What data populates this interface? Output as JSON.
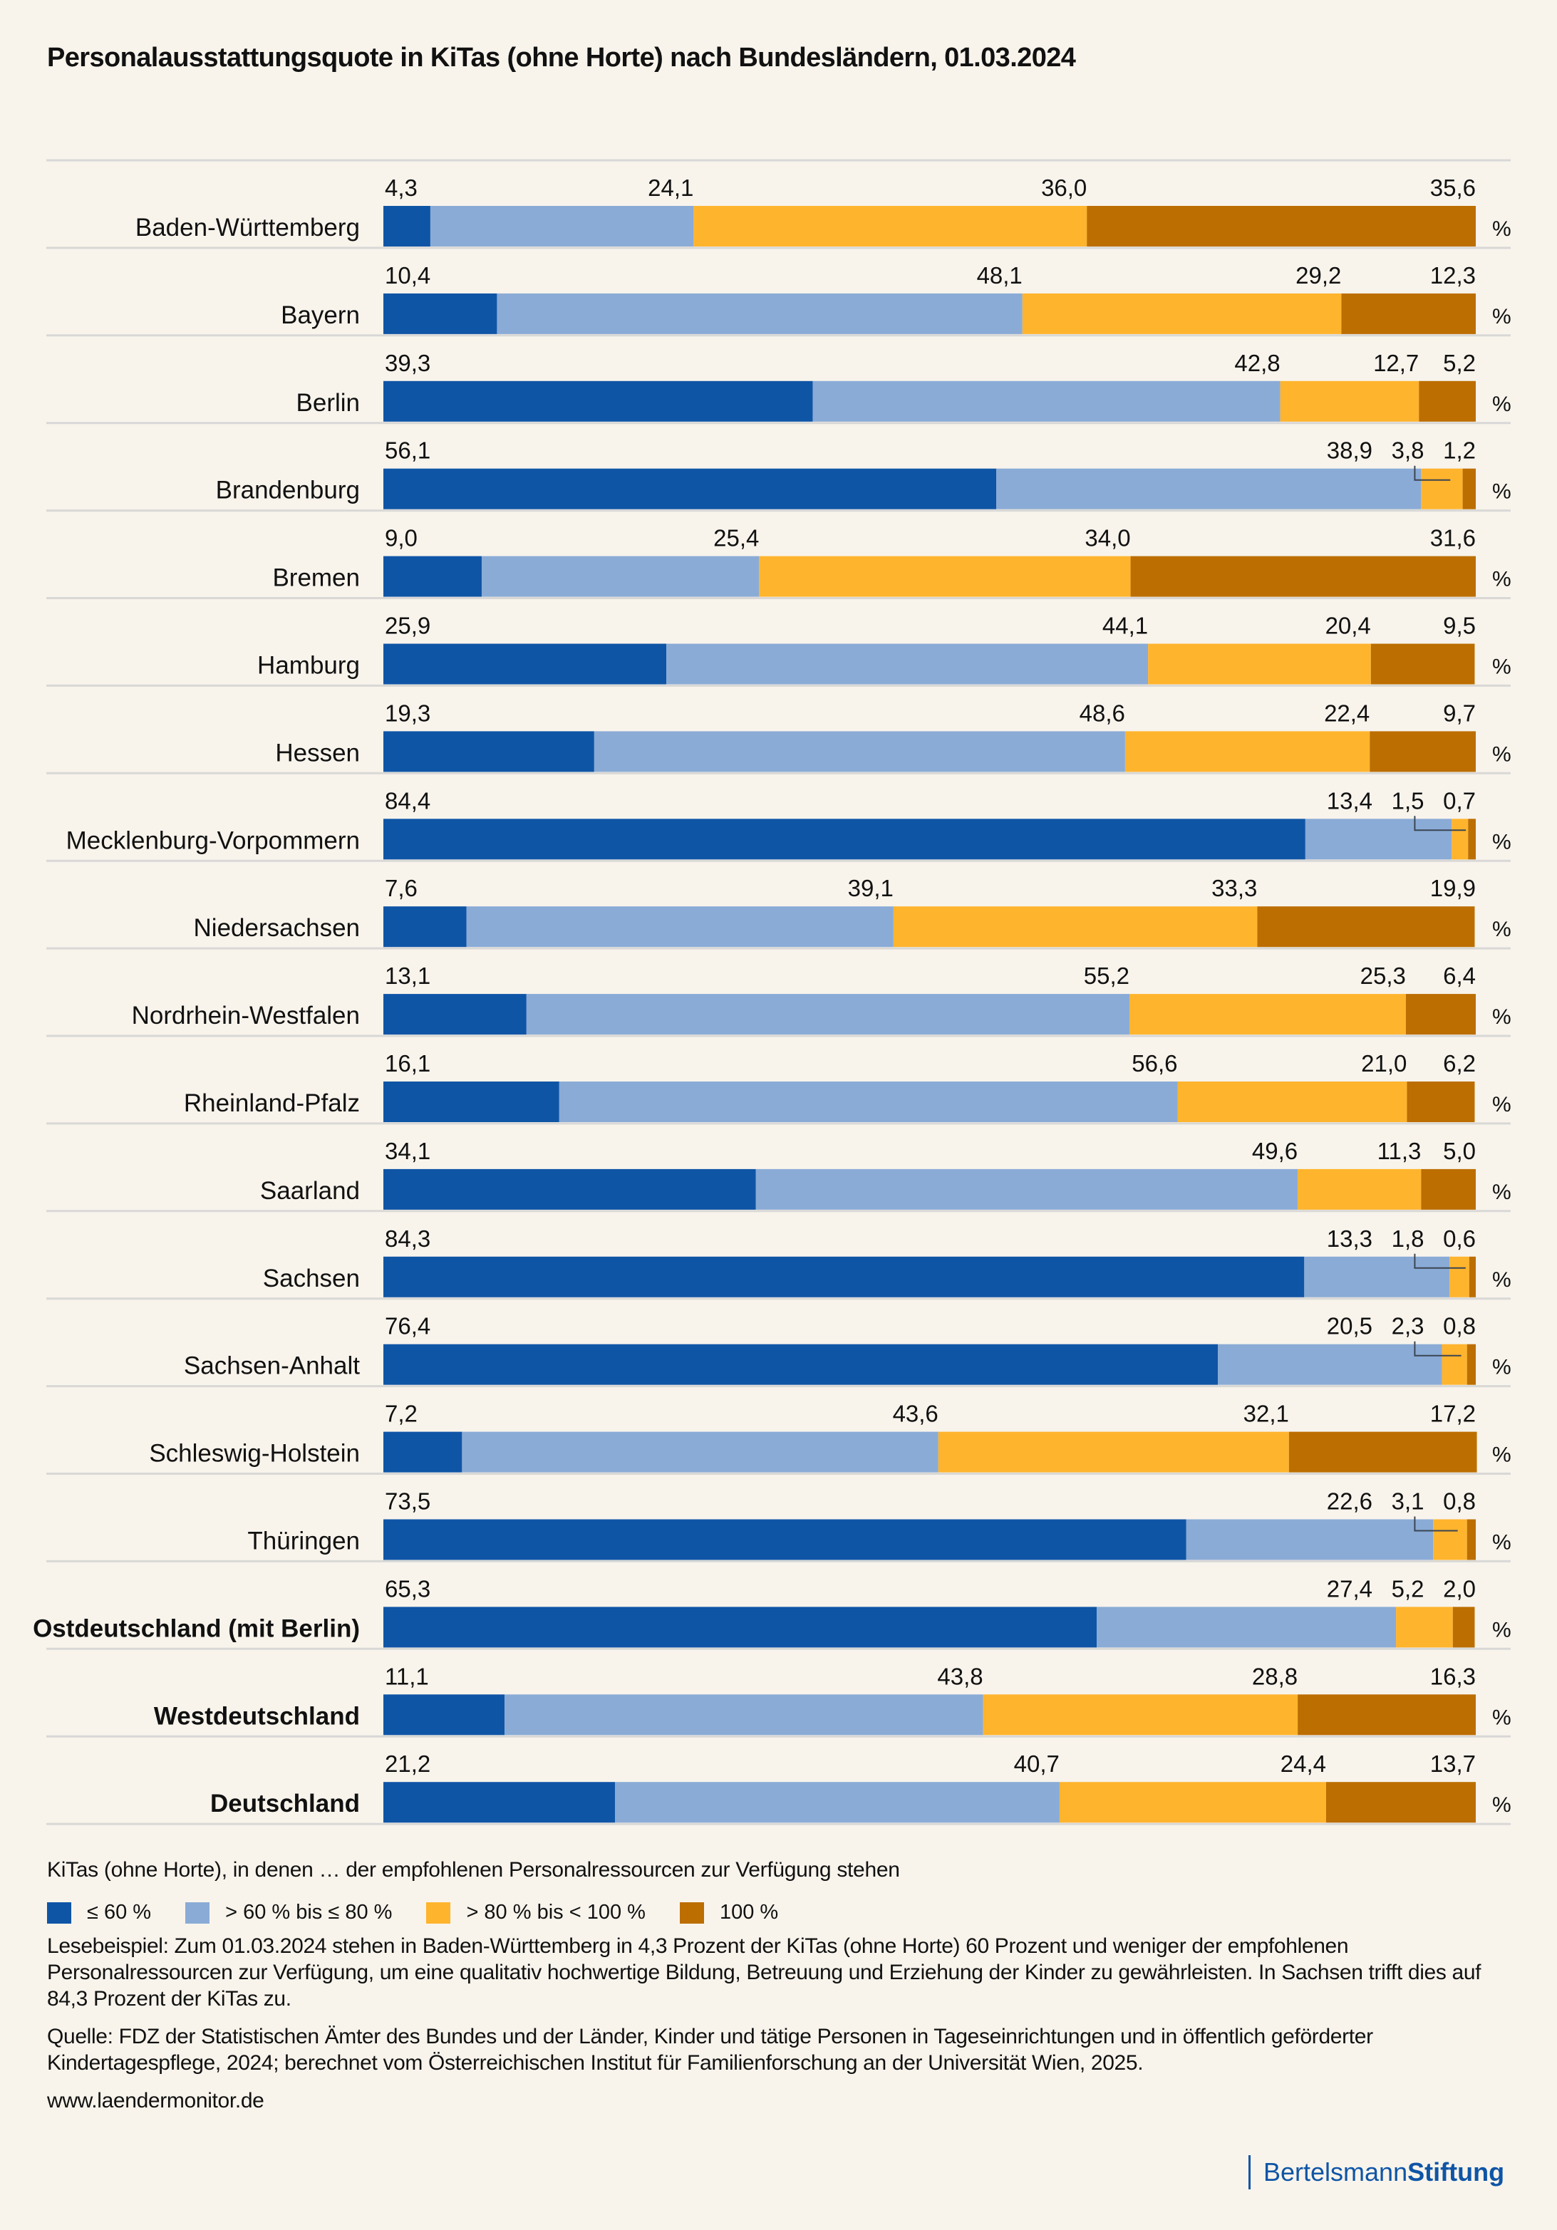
{
  "title": "Personalausstattungsquote in KiTas (ohne Horte) nach Bundesländern, 01.03.2024",
  "chart_data": {
    "type": "bar",
    "orientation": "horizontal",
    "stacked": true,
    "normalized": true,
    "title": "Personalausstattungsquote in KiTas (ohne Horte) nach Bundesländern, 01.03.2024",
    "unit": "%",
    "xlim": [
      0,
      100
    ],
    "grid": false,
    "legend_position": "bottom-left",
    "categories": [
      "Baden-Württemberg",
      "Bayern",
      "Berlin",
      "Brandenburg",
      "Bremen",
      "Hamburg",
      "Hessen",
      "Mecklenburg-Vorpommern",
      "Niedersachsen",
      "Nordrhein-Westfalen",
      "Rheinland-Pfalz",
      "Saarland",
      "Sachsen",
      "Sachsen-Anhalt",
      "Schleswig-Holstein",
      "Thüringen",
      "Ostdeutschland (mit Berlin)",
      "Westdeutschland",
      "Deutschland"
    ],
    "bold_categories": [
      "Ostdeutschland (mit Berlin)",
      "Westdeutschland",
      "Deutschland"
    ],
    "series": [
      {
        "name": "≤ 60 %",
        "color": "#0F55A6",
        "values": [
          4.3,
          10.4,
          39.3,
          56.1,
          9.0,
          25.9,
          19.3,
          84.4,
          7.6,
          13.1,
          16.1,
          34.1,
          84.3,
          76.4,
          7.2,
          73.5,
          65.3,
          11.1,
          21.2
        ]
      },
      {
        "name": "> 60 % bis ≤ 80 %",
        "color": "#8AABD6",
        "values": [
          24.1,
          48.1,
          42.8,
          38.9,
          25.4,
          44.1,
          48.6,
          13.4,
          39.1,
          55.2,
          56.6,
          49.6,
          13.3,
          20.5,
          43.6,
          22.6,
          27.4,
          43.8,
          40.7
        ]
      },
      {
        "name": "> 80 % bis < 100 %",
        "color": "#FFB42D",
        "values": [
          36.0,
          29.2,
          12.7,
          3.8,
          34.0,
          20.4,
          22.4,
          1.5,
          33.3,
          25.3,
          21.0,
          11.3,
          1.8,
          2.3,
          32.1,
          3.1,
          5.2,
          28.8,
          24.4
        ]
      },
      {
        "name": "100 %",
        "color": "#BC6E00",
        "values": [
          35.6,
          12.3,
          5.2,
          1.2,
          31.6,
          9.5,
          9.7,
          0.7,
          19.9,
          6.4,
          6.2,
          5.0,
          0.6,
          0.8,
          17.2,
          0.8,
          2.0,
          16.3,
          13.7
        ]
      }
    ],
    "value_labels": [
      [
        "4,3",
        "24,1",
        "36,0",
        "35,6"
      ],
      [
        "10,4",
        "48,1",
        "29,2",
        "12,3"
      ],
      [
        "39,3",
        "42,8",
        "12,7",
        "5,2"
      ],
      [
        "56,1",
        "38,9",
        "3,8",
        "1,2"
      ],
      [
        "9,0",
        "25,4",
        "34,0",
        "31,6"
      ],
      [
        "25,9",
        "44,1",
        "20,4",
        "9,5"
      ],
      [
        "19,3",
        "48,6",
        "22,4",
        "9,7"
      ],
      [
        "84,4",
        "13,4",
        "1,5",
        "0,7"
      ],
      [
        "7,6",
        "39,1",
        "33,3",
        "19,9"
      ],
      [
        "13,1",
        "55,2",
        "25,3",
        "6,4"
      ],
      [
        "16,1",
        "56,6",
        "21,0",
        "6,2"
      ],
      [
        "34,1",
        "49,6",
        "11,3",
        "5,0"
      ],
      [
        "84,3",
        "13,3",
        "1,8",
        "0,6"
      ],
      [
        "76,4",
        "20,5",
        "2,3",
        "0,8"
      ],
      [
        "7,2",
        "43,6",
        "32,1",
        "17,2"
      ],
      [
        "73,5",
        "22,6",
        "3,1",
        "0,8"
      ],
      [
        "65,3",
        "27,4",
        "5,2",
        "2,0"
      ],
      [
        "11,1",
        "43,8",
        "28,8",
        "16,3"
      ],
      [
        "21,2",
        "40,7",
        "24,4",
        "13,7"
      ]
    ],
    "leader_line_rows": [
      "Brandenburg",
      "Mecklenburg-Vorpommern",
      "Sachsen",
      "Sachsen-Anhalt",
      "Thüringen"
    ],
    "unit_label": "%"
  },
  "legend": {
    "title": "KiTas (ohne Horte), in denen … der empfohlenen Personalressourcen zur Verfügung stehen",
    "items": [
      {
        "label": "≤ 60 %",
        "color": "#0F55A6"
      },
      {
        "label": "> 60 % bis ≤ 80 %",
        "color": "#8AABD6"
      },
      {
        "label": "> 80 % bis < 100 %",
        "color": "#FFB42D"
      },
      {
        "label": "100 %",
        "color": "#BC6E00"
      }
    ]
  },
  "notes": {
    "reading_example": "Lesebeispiel: Zum 01.03.2024 stehen in Baden-Württemberg in 4,3 Prozent der KiTas (ohne Horte) 60 Prozent und weniger der empfohlenen Personalressourcen zur Verfügung, um eine qualitativ hochwertige Bildung, Betreuung und Erziehung der Kinder zu gewährleisten. In Sachsen trifft dies auf 84,3 Prozent der KiTas zu.",
    "source": "Quelle: FDZ der Statistischen Ämter des Bundes und der Länder, Kinder und tätige Personen in Tageseinrichtungen und in öffentlich geförderter Kindertagespflege, 2024; berechnet vom Österreichischen Institut für Familienforschung an der Universität Wien, 2025.",
    "url": "www.laendermonitor.de"
  },
  "logo": {
    "part1": "Bertelsmann",
    "part2": "Stiftung",
    "color": "#0F55A6"
  }
}
